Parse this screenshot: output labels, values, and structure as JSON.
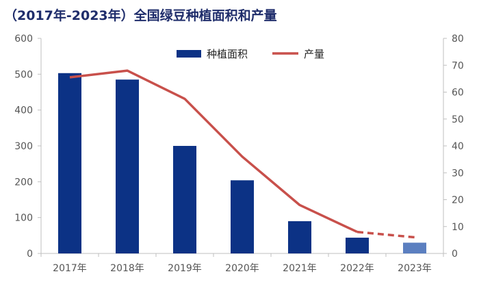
{
  "title": "（2017年-2023年）全国绿豆种植面积和产量",
  "chart_data": {
    "type": "bar",
    "categories": [
      "2017年",
      "2018年",
      "2019年",
      "2020年",
      "2021年",
      "2022年",
      "2023年"
    ],
    "series": [
      {
        "name": "种植面积",
        "type": "bar",
        "axis": "left",
        "values": [
          503,
          485,
          300,
          204,
          90,
          44,
          30
        ],
        "color": "#0c3285",
        "highlight_color": "#5b7fc0",
        "highlight_index": 6
      },
      {
        "name": "产量",
        "type": "line",
        "axis": "right",
        "values": [
          65.5,
          68,
          57.5,
          36,
          18,
          8,
          6
        ],
        "color": "#c8504b",
        "dashed_from_index": 5
      }
    ],
    "ylim_left": [
      0,
      600
    ],
    "yticks_left": [
      0,
      100,
      200,
      300,
      400,
      500,
      600
    ],
    "ylim_right": [
      0,
      80
    ],
    "yticks_right": [
      0,
      10,
      20,
      30,
      40,
      50,
      60,
      70,
      80
    ],
    "grid": false,
    "legend_position": "top-center"
  }
}
